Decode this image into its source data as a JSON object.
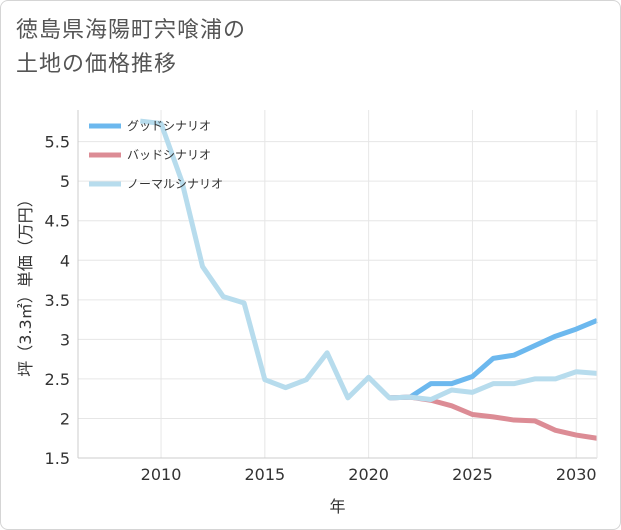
{
  "title_line1": "徳島県海陽町宍喰浦の",
  "title_line2": "土地の価格推移",
  "chart_data": {
    "type": "line",
    "xlabel": "年",
    "ylabel": "坪（3.3㎡）単価（万円）",
    "xlim": [
      2006,
      2031
    ],
    "ylim": [
      1.5,
      5.9
    ],
    "xticks": [
      2010,
      2015,
      2020,
      2025,
      2030
    ],
    "yticks": [
      1.5,
      2,
      2.5,
      3,
      3.5,
      4,
      4.5,
      5,
      5.5
    ],
    "ytick_labels": [
      "1.5",
      "2",
      "2.5",
      "3",
      "3.5",
      "4",
      "4.5",
      "5",
      "5.5"
    ],
    "xtick_labels": [
      "2010",
      "2015",
      "2020",
      "2025",
      "2030"
    ],
    "grid": true,
    "legend_position": "top-left",
    "series": [
      {
        "name": "グッドシナリオ",
        "color": "#6cb8ee",
        "x": [
          2021,
          2022,
          2023,
          2024,
          2025,
          2026,
          2027,
          2028,
          2029,
          2030,
          2031
        ],
        "y": [
          2.26,
          2.27,
          2.44,
          2.44,
          2.53,
          2.76,
          2.8,
          2.92,
          3.04,
          3.13,
          3.24
        ]
      },
      {
        "name": "バッドシナリオ",
        "color": "#dc8c95",
        "x": [
          2021,
          2022,
          2023,
          2024,
          2025,
          2026,
          2027,
          2028,
          2029,
          2030,
          2031
        ],
        "y": [
          2.26,
          2.27,
          2.23,
          2.16,
          2.05,
          2.02,
          1.98,
          1.97,
          1.85,
          1.79,
          1.75
        ]
      },
      {
        "name": "ノーマルシナリオ",
        "color": "#b7dced",
        "x": [
          2009,
          2010,
          2011,
          2012,
          2013,
          2014,
          2015,
          2016,
          2017,
          2018,
          2019,
          2020,
          2021,
          2022,
          2023,
          2024,
          2025,
          2026,
          2027,
          2028,
          2029,
          2030,
          2031
        ],
        "y": [
          5.76,
          5.73,
          5.0,
          3.92,
          3.54,
          3.46,
          2.49,
          2.39,
          2.49,
          2.83,
          2.26,
          2.52,
          2.26,
          2.27,
          2.24,
          2.36,
          2.33,
          2.44,
          2.44,
          2.5,
          2.5,
          2.59,
          2.57
        ]
      }
    ]
  }
}
